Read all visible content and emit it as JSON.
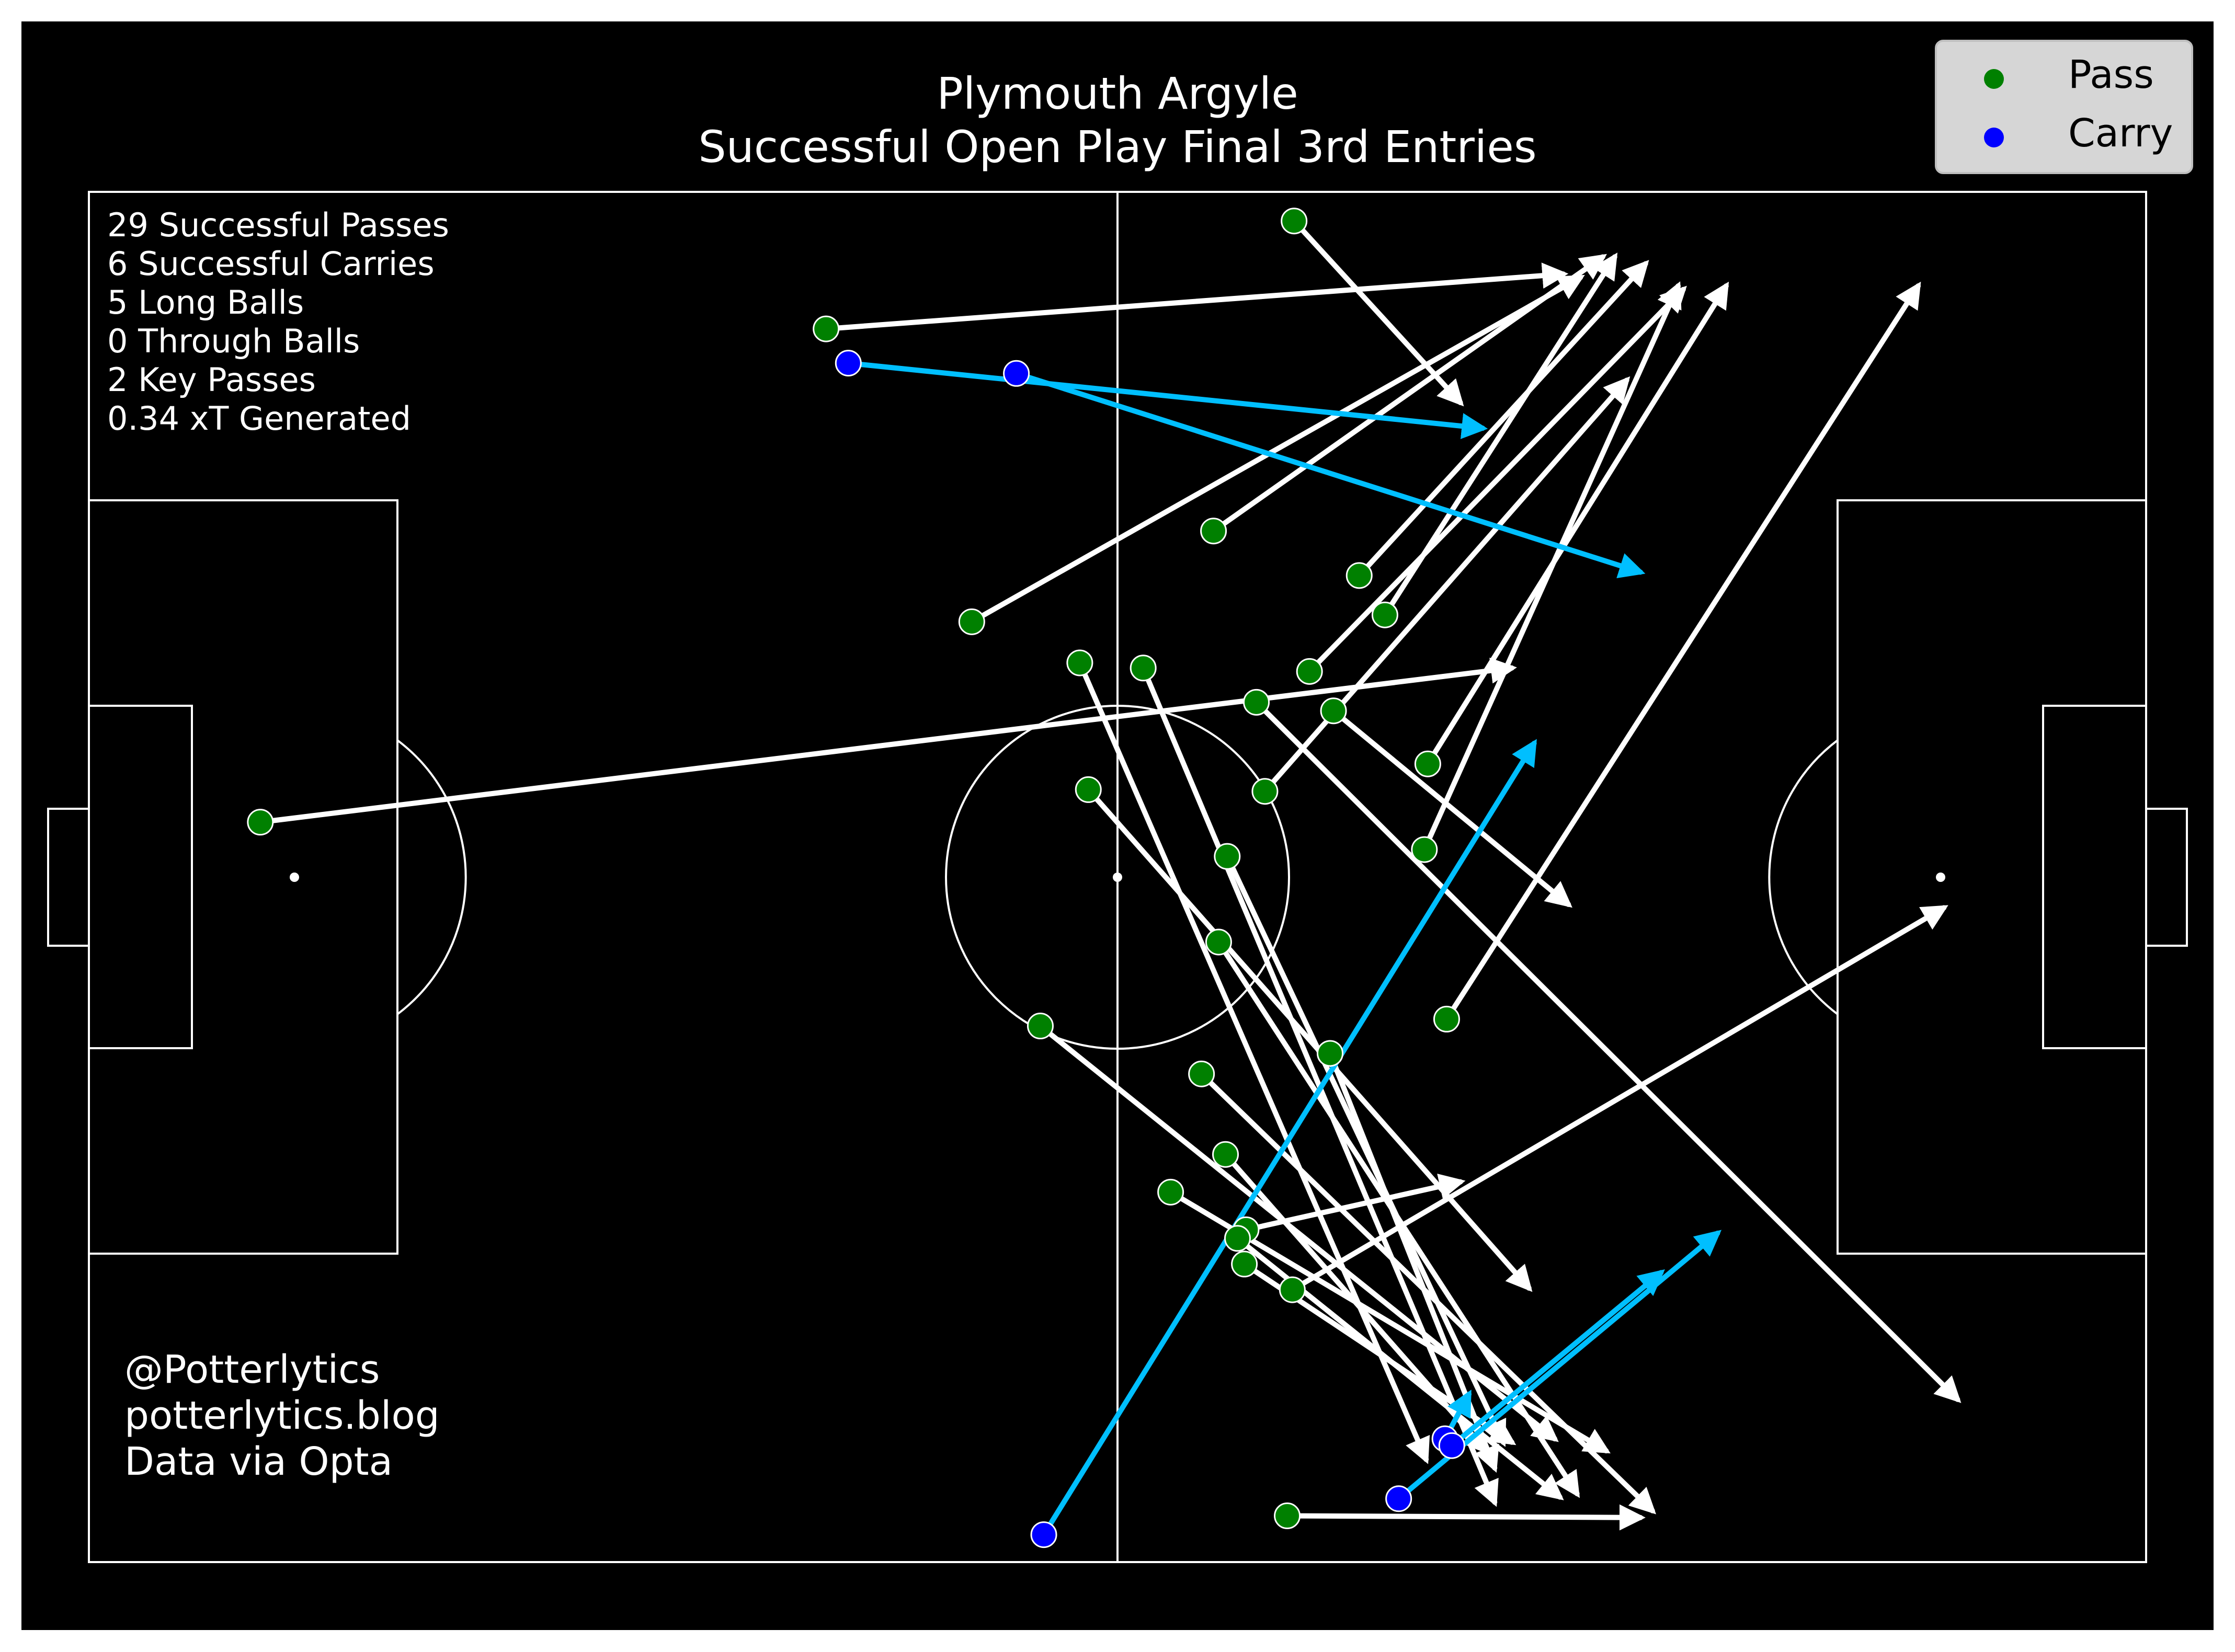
{
  "chart_data": {
    "type": "scatter",
    "title": "Plymouth Argyle",
    "subtitle": "Successful Open Play Final 3rd Entries",
    "pitch": {
      "length": 120,
      "width": 80
    },
    "legend": {
      "placement": "top-right",
      "entries": [
        {
          "label": "Pass",
          "color": "#008000"
        },
        {
          "label": "Carry",
          "color": "#0000ff"
        }
      ]
    },
    "stats": [
      "29 Successful Passes",
      "6 Successful Carries",
      "5 Long Balls",
      "0 Through Balls",
      "2 Key Passes",
      "0.34 xT Generated"
    ],
    "credits": [
      "@Potterlytics",
      "potterlytics.blog",
      "Data via Opta"
    ],
    "colors": {
      "background": "#000000",
      "pitch_lines": "#ffffff",
      "pass_arrow": "#ffffff",
      "carry_arrow": "#00bfff",
      "pass_dot": "#008000",
      "carry_dot": "#0000ff"
    },
    "passes": [
      {
        "x": 70.3,
        "y": 1.7,
        "end_x": 80.0,
        "end_y": 12.3
      },
      {
        "x": 43.0,
        "y": 8.0,
        "end_x": 86.0,
        "end_y": 4.8
      },
      {
        "x": 65.6,
        "y": 19.8,
        "end_x": 88.3,
        "end_y": 3.8
      },
      {
        "x": 51.5,
        "y": 25.1,
        "end_x": 87.0,
        "end_y": 5.0
      },
      {
        "x": 74.1,
        "y": 22.4,
        "end_x": 90.8,
        "end_y": 4.2
      },
      {
        "x": 75.6,
        "y": 24.7,
        "end_x": 89.0,
        "end_y": 3.8
      },
      {
        "x": 71.2,
        "y": 28.0,
        "end_x": 93.0,
        "end_y": 5.7
      },
      {
        "x": 78.1,
        "y": 33.4,
        "end_x": 95.5,
        "end_y": 5.5
      },
      {
        "x": 68.6,
        "y": 35.0,
        "end_x": 89.7,
        "end_y": 11.0
      },
      {
        "x": 10.0,
        "y": 36.8,
        "end_x": 83.0,
        "end_y": 27.8
      },
      {
        "x": 77.9,
        "y": 38.4,
        "end_x": 92.7,
        "end_y": 5.5
      },
      {
        "x": 72.6,
        "y": 30.3,
        "end_x": 86.3,
        "end_y": 41.6
      },
      {
        "x": 68.1,
        "y": 29.8,
        "end_x": 109.0,
        "end_y": 70.5
      },
      {
        "x": 57.8,
        "y": 27.5,
        "end_x": 78.0,
        "end_y": 74.0
      },
      {
        "x": 61.5,
        "y": 27.8,
        "end_x": 82.0,
        "end_y": 76.5
      },
      {
        "x": 58.3,
        "y": 34.9,
        "end_x": 84.0,
        "end_y": 64.0
      },
      {
        "x": 66.4,
        "y": 38.8,
        "end_x": 82.5,
        "end_y": 73.0
      },
      {
        "x": 65.9,
        "y": 43.8,
        "end_x": 86.8,
        "end_y": 76.0
      },
      {
        "x": 72.4,
        "y": 50.3,
        "end_x": 82.0,
        "end_y": 74.5
      },
      {
        "x": 79.2,
        "y": 48.3,
        "end_x": 106.7,
        "end_y": 5.5
      },
      {
        "x": 55.5,
        "y": 48.7,
        "end_x": 85.5,
        "end_y": 72.8
      },
      {
        "x": 64.9,
        "y": 51.5,
        "end_x": 91.2,
        "end_y": 77.0
      },
      {
        "x": 66.3,
        "y": 56.2,
        "end_x": 81.5,
        "end_y": 73.5
      },
      {
        "x": 63.1,
        "y": 58.4,
        "end_x": 88.5,
        "end_y": 73.5
      },
      {
        "x": 67.5,
        "y": 60.6,
        "end_x": 80.0,
        "end_y": 57.8
      },
      {
        "x": 67.0,
        "y": 61.1,
        "end_x": 85.8,
        "end_y": 76.2
      },
      {
        "x": 67.4,
        "y": 62.6,
        "end_x": 83.0,
        "end_y": 73.0
      },
      {
        "x": 70.2,
        "y": 64.1,
        "end_x": 108.2,
        "end_y": 41.8
      },
      {
        "x": 69.9,
        "y": 77.3,
        "end_x": 90.5,
        "end_y": 77.4
      }
    ],
    "carries": [
      {
        "x": 44.3,
        "y": 10.0,
        "end_x": 81.3,
        "end_y": 13.8
      },
      {
        "x": 54.1,
        "y": 10.6,
        "end_x": 90.5,
        "end_y": 22.2
      },
      {
        "x": 55.7,
        "y": 78.4,
        "end_x": 84.3,
        "end_y": 32.2
      },
      {
        "x": 79.1,
        "y": 72.8,
        "end_x": 80.5,
        "end_y": 70.2
      },
      {
        "x": 79.5,
        "y": 73.2,
        "end_x": 91.7,
        "end_y": 63.1
      },
      {
        "x": 76.4,
        "y": 76.3,
        "end_x": 95.0,
        "end_y": 60.8
      }
    ]
  }
}
